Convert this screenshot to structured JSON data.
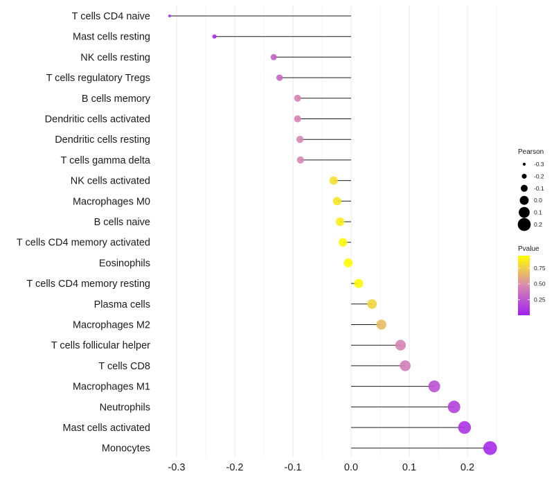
{
  "chart_data": {
    "type": "scatter",
    "subtype": "lollipop",
    "title": "",
    "xlabel": "",
    "ylabel": "",
    "xlim": [
      -0.32,
      0.245
    ],
    "x_ticks": [
      -0.3,
      -0.2,
      -0.1,
      0.0,
      0.1,
      0.2
    ],
    "x_tick_labels": [
      "-0.3",
      "-0.2",
      "-0.1",
      "0.0",
      "0.1",
      "0.2"
    ],
    "grid": true,
    "categories": [
      "T cells CD4 naive",
      "Mast cells resting",
      "NK cells resting",
      "T cells regulatory  Tregs",
      "B cells memory",
      "Dendritic cells activated",
      "Dendritic cells resting",
      "T cells gamma delta",
      "NK cells activated",
      "Macrophages M0",
      "B cells naive",
      "T cells CD4 memory activated",
      "Eosinophils",
      "T cells CD4 memory resting",
      "Plasma cells",
      "Macrophages M2",
      "T cells follicular helper",
      "T cells CD8",
      "Macrophages M1",
      "Neutrophils",
      "Mast cells activated",
      "Monocytes"
    ],
    "series": [
      {
        "name": "Pearson",
        "values": [
          -0.312,
          -0.235,
          -0.133,
          -0.123,
          -0.092,
          -0.092,
          -0.088,
          -0.087,
          -0.03,
          -0.024,
          -0.019,
          -0.014,
          -0.005,
          0.013,
          0.036,
          0.052,
          0.085,
          0.093,
          0.143,
          0.177,
          0.195,
          0.239
        ]
      },
      {
        "name": "Pvalue",
        "values": [
          0.02,
          0.05,
          0.3,
          0.32,
          0.45,
          0.45,
          0.46,
          0.46,
          0.82,
          0.85,
          0.88,
          0.92,
          0.98,
          0.93,
          0.78,
          0.68,
          0.45,
          0.42,
          0.22,
          0.15,
          0.1,
          0.05
        ]
      }
    ],
    "legends": [
      {
        "title": "Pearson",
        "type": "size",
        "labels": [
          "-0.3",
          "-0.2",
          "-0.1",
          "0.0",
          "0.1",
          "0.2"
        ],
        "values": [
          -0.3,
          -0.2,
          -0.1,
          0.0,
          0.1,
          0.2
        ],
        "placement": "right"
      },
      {
        "title": "Pvalue",
        "type": "colorbar",
        "labels": [
          "0.75",
          "0.50",
          "0.25"
        ],
        "values": [
          0.75,
          0.5,
          0.25
        ],
        "range": [
          0.0,
          0.95
        ],
        "low_color": "#a020f0",
        "mid_color": "#d88ab0",
        "high_color": "#ffff00",
        "placement": "right"
      }
    ],
    "colors": {
      "stem": "#1a1a1a",
      "grid": "#ebebeb",
      "background": "#ffffff"
    }
  }
}
